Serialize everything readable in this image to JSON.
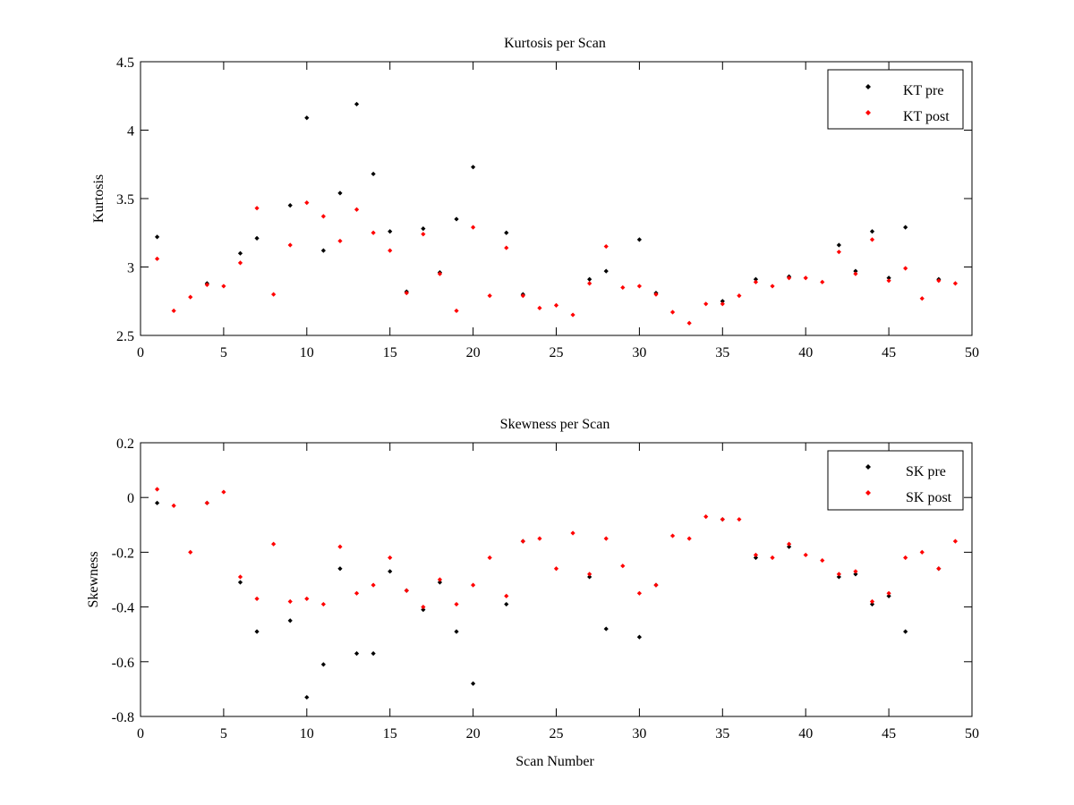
{
  "chart_data": [
    {
      "type": "scatter",
      "title": "Kurtosis per Scan",
      "xlabel": "",
      "ylabel": "Kurtosis",
      "xlim": [
        0,
        50
      ],
      "ylim": [
        2.5,
        4.5
      ],
      "xticks": [
        "0",
        "5",
        "10",
        "15",
        "20",
        "25",
        "30",
        "35",
        "40",
        "45",
        "50"
      ],
      "yticks": [
        "2.5",
        "3",
        "3.5",
        "4",
        "4.5"
      ],
      "legend_position": "top-right",
      "series": [
        {
          "name": "KT pre",
          "color": "#000000",
          "points": [
            [
              1,
              3.22
            ],
            [
              4,
              2.88
            ],
            [
              6,
              3.1
            ],
            [
              7,
              3.21
            ],
            [
              9,
              3.45
            ],
            [
              10,
              4.09
            ],
            [
              11,
              3.12
            ],
            [
              12,
              3.54
            ],
            [
              13,
              4.19
            ],
            [
              14,
              3.68
            ],
            [
              15,
              3.26
            ],
            [
              16,
              2.82
            ],
            [
              17,
              3.28
            ],
            [
              18,
              2.96
            ],
            [
              19,
              3.35
            ],
            [
              20,
              3.73
            ],
            [
              22,
              3.25
            ],
            [
              23,
              2.8
            ],
            [
              27,
              2.91
            ],
            [
              28,
              2.97
            ],
            [
              30,
              3.2
            ],
            [
              31,
              2.81
            ],
            [
              35,
              2.75
            ],
            [
              37,
              2.91
            ],
            [
              39,
              2.93
            ],
            [
              42,
              3.16
            ],
            [
              43,
              2.97
            ],
            [
              44,
              3.26
            ],
            [
              45,
              2.92
            ],
            [
              46,
              3.29
            ],
            [
              48,
              2.91
            ]
          ]
        },
        {
          "name": "KT post",
          "color": "#ff0000",
          "points": [
            [
              1,
              3.06
            ],
            [
              2,
              2.68
            ],
            [
              3,
              2.78
            ],
            [
              4,
              2.87
            ],
            [
              5,
              2.86
            ],
            [
              6,
              3.03
            ],
            [
              7,
              3.43
            ],
            [
              8,
              2.8
            ],
            [
              9,
              3.16
            ],
            [
              10,
              3.47
            ],
            [
              11,
              3.37
            ],
            [
              12,
              3.19
            ],
            [
              13,
              3.42
            ],
            [
              14,
              3.25
            ],
            [
              15,
              3.12
            ],
            [
              16,
              2.81
            ],
            [
              17,
              3.24
            ],
            [
              18,
              2.95
            ],
            [
              19,
              2.68
            ],
            [
              20,
              3.29
            ],
            [
              21,
              2.79
            ],
            [
              22,
              3.14
            ],
            [
              23,
              2.79
            ],
            [
              24,
              2.7
            ],
            [
              25,
              2.72
            ],
            [
              26,
              2.65
            ],
            [
              27,
              2.88
            ],
            [
              28,
              3.15
            ],
            [
              29,
              2.85
            ],
            [
              30,
              2.86
            ],
            [
              31,
              2.8
            ],
            [
              32,
              2.67
            ],
            [
              33,
              2.59
            ],
            [
              34,
              2.73
            ],
            [
              35,
              2.73
            ],
            [
              36,
              2.79
            ],
            [
              37,
              2.89
            ],
            [
              38,
              2.86
            ],
            [
              39,
              2.92
            ],
            [
              40,
              2.92
            ],
            [
              41,
              2.89
            ],
            [
              42,
              3.11
            ],
            [
              43,
              2.95
            ],
            [
              44,
              3.2
            ],
            [
              45,
              2.9
            ],
            [
              46,
              2.99
            ],
            [
              47,
              2.77
            ],
            [
              48,
              2.9
            ],
            [
              49,
              2.88
            ]
          ]
        }
      ]
    },
    {
      "type": "scatter",
      "title": "Skewness per Scan",
      "xlabel": "Scan Number",
      "ylabel": "Skewness",
      "xlim": [
        0,
        50
      ],
      "ylim": [
        -0.8,
        0.2
      ],
      "xticks": [
        "0",
        "5",
        "10",
        "15",
        "20",
        "25",
        "30",
        "35",
        "40",
        "45",
        "50"
      ],
      "yticks": [
        "-0.8",
        "-0.6",
        "-0.4",
        "-0.2",
        "0",
        "0.2"
      ],
      "legend_position": "top-right",
      "series": [
        {
          "name": "SK pre",
          "color": "#000000",
          "points": [
            [
              1,
              -0.02
            ],
            [
              4,
              -0.02
            ],
            [
              6,
              -0.31
            ],
            [
              7,
              -0.49
            ],
            [
              9,
              -0.45
            ],
            [
              10,
              -0.73
            ],
            [
              11,
              -0.61
            ],
            [
              12,
              -0.26
            ],
            [
              13,
              -0.57
            ],
            [
              14,
              -0.57
            ],
            [
              15,
              -0.27
            ],
            [
              16,
              -0.34
            ],
            [
              17,
              -0.41
            ],
            [
              18,
              -0.31
            ],
            [
              19,
              -0.49
            ],
            [
              20,
              -0.68
            ],
            [
              22,
              -0.39
            ],
            [
              23,
              -0.16
            ],
            [
              27,
              -0.29
            ],
            [
              28,
              -0.48
            ],
            [
              30,
              -0.51
            ],
            [
              31,
              -0.32
            ],
            [
              35,
              -0.08
            ],
            [
              37,
              -0.22
            ],
            [
              39,
              -0.18
            ],
            [
              42,
              -0.29
            ],
            [
              43,
              -0.28
            ],
            [
              44,
              -0.39
            ],
            [
              45,
              -0.36
            ],
            [
              46,
              -0.49
            ],
            [
              48,
              -0.26
            ]
          ]
        },
        {
          "name": "SK post",
          "color": "#ff0000",
          "points": [
            [
              1,
              0.03
            ],
            [
              2,
              -0.03
            ],
            [
              3,
              -0.2
            ],
            [
              4,
              -0.02
            ],
            [
              5,
              0.02
            ],
            [
              6,
              -0.29
            ],
            [
              7,
              -0.37
            ],
            [
              8,
              -0.17
            ],
            [
              9,
              -0.38
            ],
            [
              10,
              -0.37
            ],
            [
              11,
              -0.39
            ],
            [
              12,
              -0.18
            ],
            [
              13,
              -0.35
            ],
            [
              14,
              -0.32
            ],
            [
              15,
              -0.22
            ],
            [
              16,
              -0.34
            ],
            [
              17,
              -0.4
            ],
            [
              18,
              -0.3
            ],
            [
              19,
              -0.39
            ],
            [
              20,
              -0.32
            ],
            [
              21,
              -0.22
            ],
            [
              22,
              -0.36
            ],
            [
              23,
              -0.16
            ],
            [
              24,
              -0.15
            ],
            [
              25,
              -0.26
            ],
            [
              26,
              -0.13
            ],
            [
              27,
              -0.28
            ],
            [
              28,
              -0.15
            ],
            [
              29,
              -0.25
            ],
            [
              30,
              -0.35
            ],
            [
              31,
              -0.32
            ],
            [
              32,
              -0.14
            ],
            [
              33,
              -0.15
            ],
            [
              34,
              -0.07
            ],
            [
              35,
              -0.08
            ],
            [
              36,
              -0.08
            ],
            [
              37,
              -0.21
            ],
            [
              38,
              -0.22
            ],
            [
              39,
              -0.17
            ],
            [
              40,
              -0.21
            ],
            [
              41,
              -0.23
            ],
            [
              42,
              -0.28
            ],
            [
              43,
              -0.27
            ],
            [
              44,
              -0.38
            ],
            [
              45,
              -0.35
            ],
            [
              46,
              -0.22
            ],
            [
              47,
              -0.2
            ],
            [
              48,
              -0.26
            ],
            [
              49,
              -0.16
            ]
          ]
        }
      ]
    }
  ]
}
